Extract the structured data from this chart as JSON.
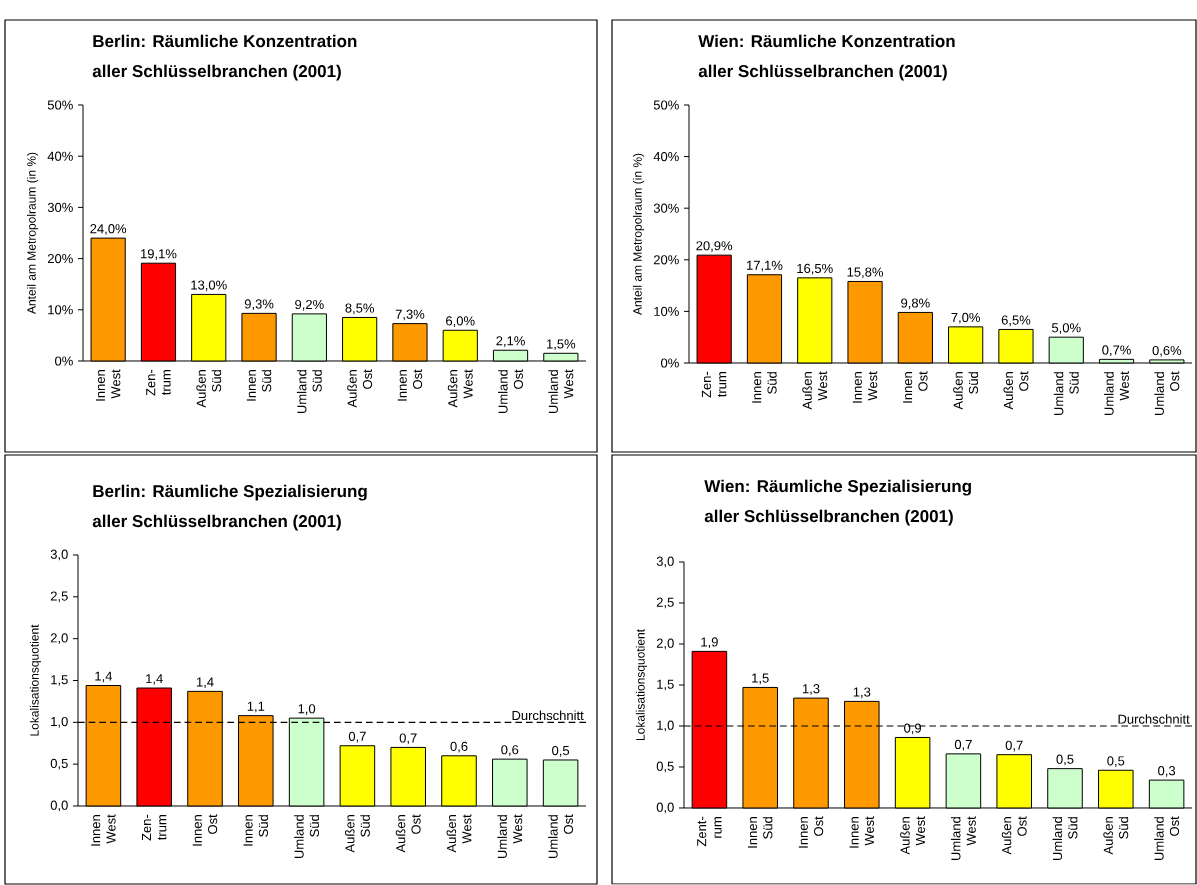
{
  "chart_data": [
    {
      "type": "bar",
      "title": "Berlin: Räumliche Konzentration",
      "subtitle": "aller Schlüsselbranchen (2001)",
      "ylabel": "Anteil am Metropolraum (in %)",
      "categories": [
        "Innen West",
        "Zen- trum",
        "Außen Süd",
        "Innen Süd",
        "Umland Süd",
        "Außen Ost",
        "Innen Ost",
        "Außen West",
        "Umland Ost",
        "Umland West"
      ],
      "values": [
        24.0,
        19.1,
        13.0,
        9.3,
        9.2,
        8.5,
        7.3,
        6.0,
        2.1,
        1.5
      ],
      "value_labels": [
        "24,0%",
        "19,1%",
        "13,0%",
        "9,3%",
        "9,2%",
        "8,5%",
        "7,3%",
        "6,0%",
        "2,1%",
        "1,5%"
      ],
      "colors": [
        "#ff9900",
        "#ff0000",
        "#ffff00",
        "#ff9900",
        "#ccffcc",
        "#ffff00",
        "#ff9900",
        "#ffff00",
        "#ccffcc",
        "#ccffcc"
      ],
      "ylim": [
        0,
        50
      ],
      "yticks": [
        {
          "value": 0,
          "label": "0%"
        },
        {
          "value": 10,
          "label": "10%"
        },
        {
          "value": 20,
          "label": "20%"
        },
        {
          "value": 30,
          "label": "30%"
        },
        {
          "value": 40,
          "label": "40%"
        },
        {
          "value": 50,
          "label": "50%"
        }
      ]
    },
    {
      "type": "bar",
      "title": "Wien: Räumliche Konzentration",
      "subtitle": "aller Schlüsselbranchen (2001)",
      "ylabel": "Anteil am Metropolraum (in %)",
      "categories": [
        "Zen- trum",
        "Innen Süd",
        "Außen West",
        "Innen West",
        "Innen Ost",
        "Außen Süd",
        "Außen Ost",
        "Umland Süd",
        "Umland West",
        "Umland Ost"
      ],
      "values": [
        20.9,
        17.1,
        16.5,
        15.8,
        9.8,
        7.0,
        6.5,
        5.0,
        0.7,
        0.6
      ],
      "value_labels": [
        "20,9%",
        "17,1%",
        "16,5%",
        "15,8%",
        "9,8%",
        "7,0%",
        "6,5%",
        "5,0%",
        "0,7%",
        "0,6%"
      ],
      "colors": [
        "#ff0000",
        "#ff9900",
        "#ffff00",
        "#ff9900",
        "#ff9900",
        "#ffff00",
        "#ffff00",
        "#ccffcc",
        "#ccffcc",
        "#ccffcc"
      ],
      "ylim": [
        0,
        50
      ],
      "yticks": [
        {
          "value": 0,
          "label": "0%"
        },
        {
          "value": 10,
          "label": "10%"
        },
        {
          "value": 20,
          "label": "20%"
        },
        {
          "value": 30,
          "label": "30%"
        },
        {
          "value": 40,
          "label": "40%"
        },
        {
          "value": 50,
          "label": "50%"
        }
      ]
    },
    {
      "type": "bar",
      "title": "Berlin: Räumliche Spezialisierung",
      "subtitle": "aller Schlüsselbranchen (2001)",
      "ylabel": "Lokalisationsquotient",
      "categories": [
        "Innen West",
        "Zen- trum",
        "Innen Ost",
        "Innen Süd",
        "Umland Süd",
        "Außen Süd",
        "Außen Ost",
        "Außen West",
        "Umland West",
        "Umland Ost"
      ],
      "values": [
        1.44,
        1.41,
        1.37,
        1.08,
        1.05,
        0.72,
        0.7,
        0.6,
        0.56,
        0.55
      ],
      "value_labels": [
        "1,4",
        "1,4",
        "1,4",
        "1,1",
        "1,0",
        "0,7",
        "0,7",
        "0,6",
        "0,6",
        "0,5"
      ],
      "colors": [
        "#ff9900",
        "#ff0000",
        "#ff9900",
        "#ff9900",
        "#ccffcc",
        "#ffff00",
        "#ffff00",
        "#ffff00",
        "#ccffcc",
        "#ccffcc"
      ],
      "ylim": [
        0,
        3
      ],
      "yticks": [
        {
          "value": 0,
          "label": "0,0"
        },
        {
          "value": 0.5,
          "label": "0,5"
        },
        {
          "value": 1,
          "label": "1,0"
        },
        {
          "value": 1.5,
          "label": "1,5"
        },
        {
          "value": 2,
          "label": "2,0"
        },
        {
          "value": 2.5,
          "label": "2,5"
        },
        {
          "value": 3,
          "label": "3,0"
        }
      ],
      "ref_lines": [
        {
          "axis": "y",
          "value": 1,
          "label": "Durchschnitt",
          "color": "#000000",
          "line_style": "dashed"
        }
      ]
    },
    {
      "type": "bar",
      "title": "Wien: Räumliche Spezialisierung",
      "subtitle": "aller Schlüsselbranchen (2001)",
      "ylabel": "Lokalisationsquotient",
      "categories": [
        "Zent- rum",
        "Innen Süd",
        "Innen Ost",
        "Innen West",
        "Außen West",
        "Umland West",
        "Außen Ost",
        "Umland Süd",
        "Außen Süd",
        "Umland Ost"
      ],
      "values": [
        1.91,
        1.47,
        1.34,
        1.3,
        0.86,
        0.66,
        0.65,
        0.48,
        0.46,
        0.34
      ],
      "value_labels": [
        "1,9",
        "1,5",
        "1,3",
        "1,3",
        "0,9",
        "0,7",
        "0,7",
        "0,5",
        "0,5",
        "0,3"
      ],
      "colors": [
        "#ff0000",
        "#ff9900",
        "#ff9900",
        "#ff9900",
        "#ffff00",
        "#ccffcc",
        "#ffff00",
        "#ccffcc",
        "#ffff00",
        "#ccffcc"
      ],
      "ylim": [
        0,
        3
      ],
      "yticks": [
        {
          "value": 0,
          "label": "0,0"
        },
        {
          "value": 0.5,
          "label": "0,5"
        },
        {
          "value": 1,
          "label": "1,0"
        },
        {
          "value": 1.5,
          "label": "1,5"
        },
        {
          "value": 2,
          "label": "2,0"
        },
        {
          "value": 2.5,
          "label": "2,5"
        },
        {
          "value": 3,
          "label": "3,0"
        }
      ],
      "ref_lines": [
        {
          "axis": "y",
          "value": 1,
          "label": "Durchschnitt",
          "color": "#000000",
          "line_style": "dashed"
        }
      ]
    }
  ]
}
